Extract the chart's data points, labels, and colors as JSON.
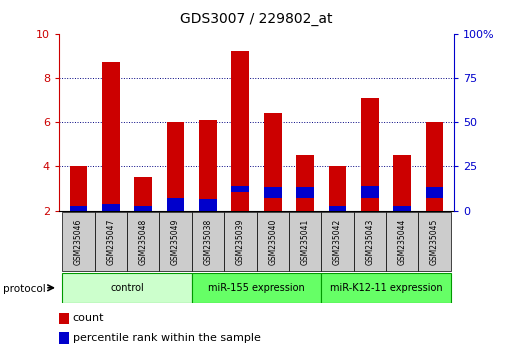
{
  "title": "GDS3007 / 229802_at",
  "samples": [
    "GSM235046",
    "GSM235047",
    "GSM235048",
    "GSM235049",
    "GSM235038",
    "GSM235039",
    "GSM235040",
    "GSM235041",
    "GSM235042",
    "GSM235043",
    "GSM235044",
    "GSM235045"
  ],
  "count_values": [
    4.0,
    8.7,
    3.5,
    6.0,
    6.1,
    9.2,
    6.4,
    4.5,
    4.0,
    7.1,
    4.5,
    6.0
  ],
  "percentile_values": [
    0.22,
    0.3,
    0.22,
    0.55,
    0.52,
    0.28,
    0.52,
    0.52,
    0.22,
    0.55,
    0.22,
    0.52
  ],
  "percentile_bottom": [
    2.0,
    2.0,
    2.0,
    2.0,
    2.0,
    2.85,
    2.55,
    2.55,
    2.0,
    2.55,
    2.0,
    2.55
  ],
  "bar_bottom": 2.0,
  "ylim_left": [
    2,
    10
  ],
  "ylim_right": [
    0,
    100
  ],
  "yticks_left": [
    2,
    4,
    6,
    8,
    10
  ],
  "yticks_right": [
    0,
    25,
    50,
    75,
    100
  ],
  "ytick_labels_right": [
    "0",
    "25",
    "50",
    "75",
    "100%"
  ],
  "count_color": "#cc0000",
  "percentile_color": "#0000cc",
  "bar_width": 0.55,
  "groups": [
    {
      "label": "control",
      "start": 0,
      "end": 3,
      "color": "#ccffcc"
    },
    {
      "label": "miR-155 expression",
      "start": 4,
      "end": 7,
      "color": "#66ff66"
    },
    {
      "label": "miR-K12-11 expression",
      "start": 8,
      "end": 11,
      "color": "#66ff66"
    }
  ],
  "protocol_label": "protocol",
  "legend_count": "count",
  "legend_percentile": "percentile rank within the sample",
  "tick_color_left": "#cc0000",
  "tick_color_right": "#0000cc",
  "xlabel_rotation": 270,
  "sample_bg_color": "#cccccc",
  "group_border_color": "#009900"
}
